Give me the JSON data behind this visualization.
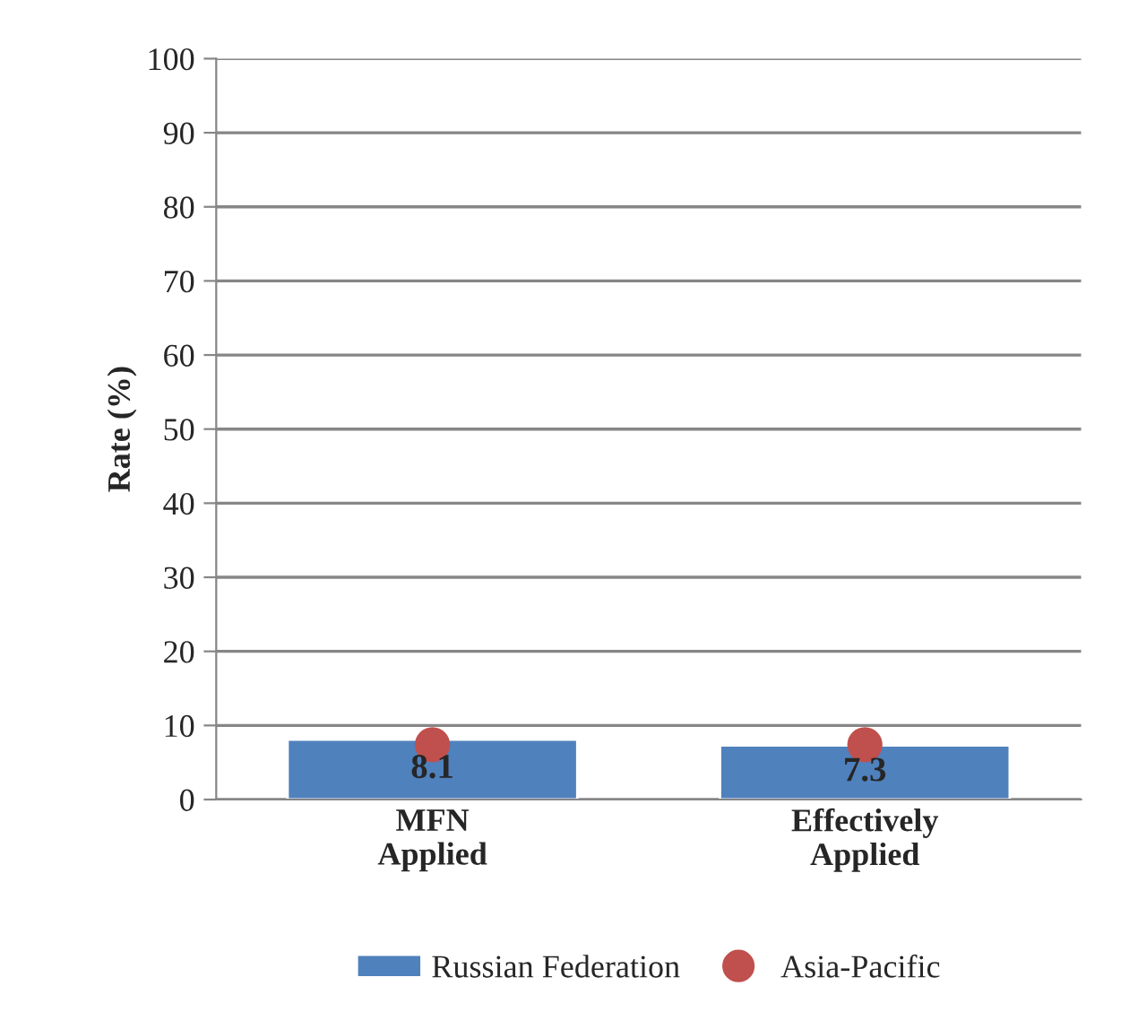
{
  "chart_data": {
    "type": "bar",
    "ylabel": "Rate (%)",
    "categories": [
      "MFN\nApplied",
      "Effectively\nApplied"
    ],
    "series": [
      {
        "name": "Russian Federation",
        "color": "#4f81bd",
        "values": [
          8.1,
          7.3
        ],
        "value_labels": [
          "8.1",
          "7.3"
        ]
      },
      {
        "name": "Asia-Pacific",
        "type": "scatter",
        "color": "#c0504d",
        "x": [
          "MFN\nApplied",
          "Effectively\nApplied"
        ],
        "values": [
          7.4,
          7.4
        ],
        "marker": "circle"
      }
    ],
    "ylim": [
      0,
      100
    ],
    "yticks": [
      0,
      10,
      20,
      30,
      40,
      50,
      60,
      70,
      80,
      90,
      100
    ],
    "grid": "y",
    "legend": "bottom"
  }
}
